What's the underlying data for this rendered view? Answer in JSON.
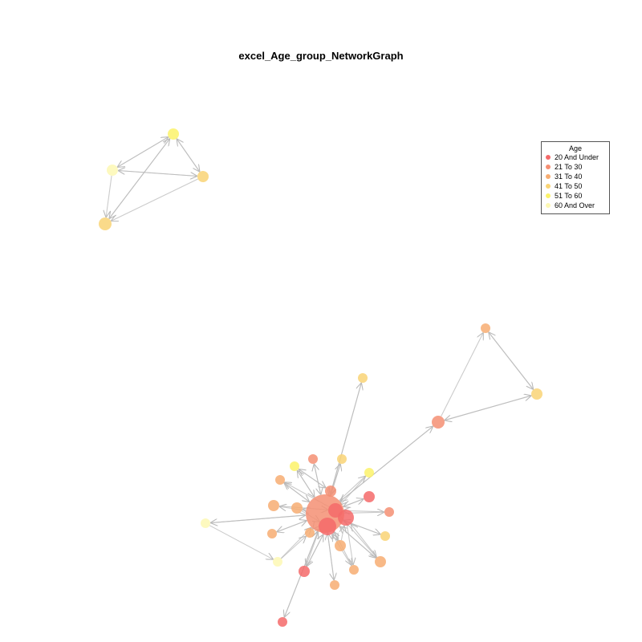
{
  "title": "excel_Age_group_NetworkGraph",
  "legend": {
    "title": "Age",
    "items": [
      {
        "label": "20 And Under",
        "color": "#f46a6a"
      },
      {
        "label": "21 To 30",
        "color": "#f58f73"
      },
      {
        "label": "31 To 40",
        "color": "#f7ad72"
      },
      {
        "label": "41 To 50",
        "color": "#f9d475"
      },
      {
        "label": "51 To 60",
        "color": "#fbf26a"
      },
      {
        "label": "60 And Over",
        "color": "#fdf8b4"
      }
    ]
  }
}
